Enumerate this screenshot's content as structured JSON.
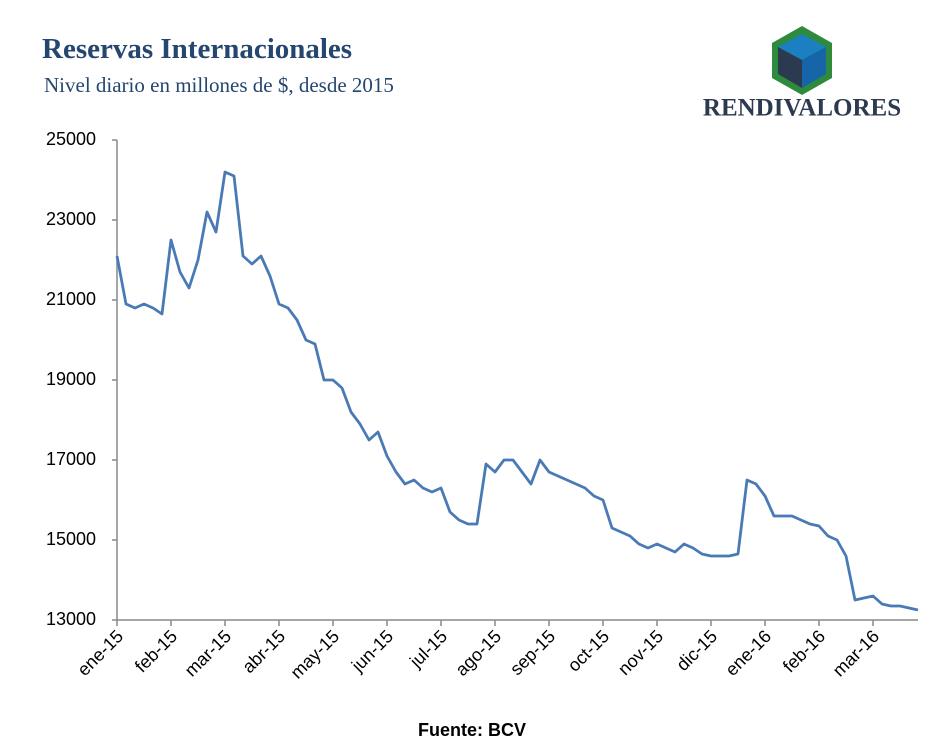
{
  "chart_data": {
    "type": "line",
    "title": "Reservas Internacionales",
    "subtitle": "Nivel diario en millones de $, desde 2015",
    "source": "Fuente: BCV",
    "categories": [
      "ene-15",
      null,
      null,
      null,
      null,
      null,
      "feb-15",
      null,
      null,
      null,
      null,
      null,
      "mar-15",
      null,
      null,
      null,
      null,
      null,
      "abr-15",
      null,
      null,
      null,
      null,
      null,
      "may-15",
      null,
      null,
      null,
      null,
      null,
      "jun-15",
      null,
      null,
      null,
      null,
      null,
      "jul-15",
      null,
      null,
      null,
      null,
      null,
      "ago-15",
      null,
      null,
      null,
      null,
      null,
      "sep-15",
      null,
      null,
      null,
      null,
      null,
      "oct-15",
      null,
      null,
      null,
      null,
      null,
      "nov-15",
      null,
      null,
      null,
      null,
      null,
      "dic-15",
      null,
      null,
      null,
      null,
      null,
      "ene-16",
      null,
      null,
      null,
      null,
      null,
      "feb-16",
      null,
      null,
      null,
      null,
      null,
      "mar-16",
      null,
      null,
      null,
      null,
      null
    ],
    "values": [
      22100,
      20900,
      20800,
      20900,
      20800,
      20650,
      22500,
      21700,
      21300,
      22000,
      23200,
      22700,
      24200,
      24100,
      22100,
      21900,
      22100,
      21600,
      20900,
      20800,
      20500,
      20000,
      19900,
      19000,
      19000,
      18800,
      18200,
      17900,
      17500,
      17700,
      17100,
      16700,
      16400,
      16500,
      16300,
      16200,
      16300,
      15700,
      15500,
      15400,
      15400,
      16900,
      16700,
      17000,
      17000,
      16700,
      16400,
      17000,
      16700,
      16600,
      16500,
      16400,
      16300,
      16100,
      16000,
      15300,
      15200,
      15100,
      14900,
      14800,
      14900,
      14800,
      14700,
      14900,
      14800,
      14650,
      14600,
      14600,
      14600,
      14650,
      16500,
      16400,
      16100,
      15600,
      15600,
      15600,
      15500,
      15400,
      15350,
      15100,
      15000,
      14600,
      13500,
      13550,
      13600,
      13400,
      13350,
      13350,
      13300,
      13250
    ],
    "color": "#4a7ab5",
    "ylim": [
      13000,
      25000
    ],
    "yticks": [
      13000,
      15000,
      17000,
      19000,
      21000,
      23000,
      25000
    ],
    "grid": false
  },
  "logo": {
    "text": "RENDIVALORES"
  }
}
